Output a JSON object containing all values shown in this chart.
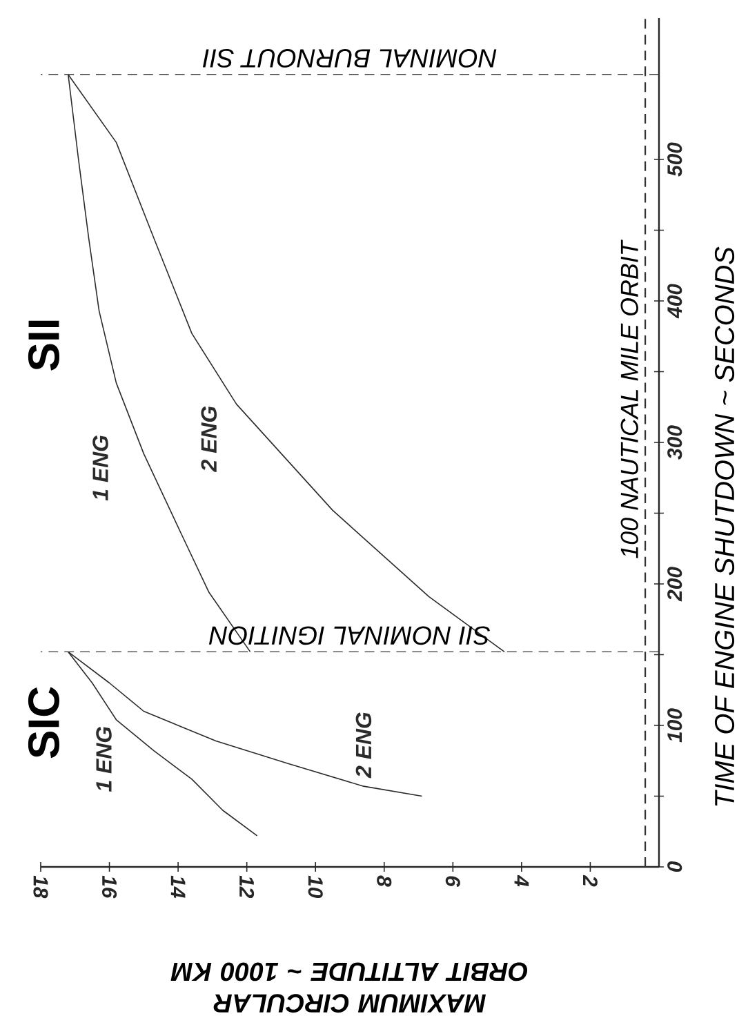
{
  "chart_data": {
    "type": "line",
    "xlabel": "MAXIMUM CIRCULAR ORBIT ALTITUDE ~ 1000 KM",
    "ylabel": "TIME OF ENGINE SHUTDOWN ~ SECONDS",
    "xlim": [
      18,
      0
    ],
    "ylim": [
      0,
      600
    ],
    "xticks": [
      18,
      16,
      14,
      12,
      10,
      8,
      6,
      4,
      2
    ],
    "yticks": [
      0,
      {
        "value": 50,
        "label": null
      },
      100,
      {
        "value": 150,
        "label": null
      },
      200,
      {
        "value": 250,
        "label": null
      },
      300,
      {
        "value": 350,
        "label": null
      },
      400,
      {
        "value": 450,
        "label": null
      },
      500
    ],
    "grid": false,
    "marker": "none",
    "line_style": "solid",
    "series": [
      {
        "name": "1 ENG",
        "color": "#2b2b2b",
        "x": [
          11.7,
          12.7,
          13.6,
          14.7,
          15.8,
          16.5,
          17.2
        ],
        "values": [
          22,
          40,
          62,
          82,
          104,
          130,
          152
        ]
      },
      {
        "name": "2 ENG",
        "color": "#2b2b2b",
        "x": [
          6.9,
          8.6,
          10.8,
          12.9,
          15.0,
          16.0,
          17.2
        ],
        "values": [
          50,
          57,
          73,
          89,
          110,
          130,
          152
        ]
      },
      {
        "name": "1 ENG",
        "color": "#2b2b2b",
        "x": [
          11.9,
          13.1,
          13.9,
          15.0,
          15.8,
          16.3,
          16.6,
          16.9,
          17.2
        ],
        "values": [
          152,
          194,
          235,
          292,
          342,
          393,
          444,
          500,
          560
        ]
      },
      {
        "name": "2 ENG",
        "color": "#2b2b2b",
        "x": [
          4.5,
          6.7,
          9.5,
          12.3,
          13.6,
          14.7,
          15.8,
          17.2
        ],
        "values": [
          152,
          191,
          252,
          327,
          377,
          444,
          512,
          560
        ]
      }
    ],
    "ref_lines": [
      {
        "axis": "y",
        "value": 152,
        "label": "SII NOMINAL IGNITION",
        "line_style": "dashed"
      },
      {
        "axis": "y",
        "value": 560,
        "label": "NOMINAL BURNOUT SII",
        "line_style": "dashed"
      },
      {
        "axis": "x",
        "value": 0.4,
        "label": "100 NAUTICAL MILE ORBIT",
        "line_style": "dashed"
      }
    ],
    "annotations": [
      "SIC",
      "SII"
    ]
  }
}
